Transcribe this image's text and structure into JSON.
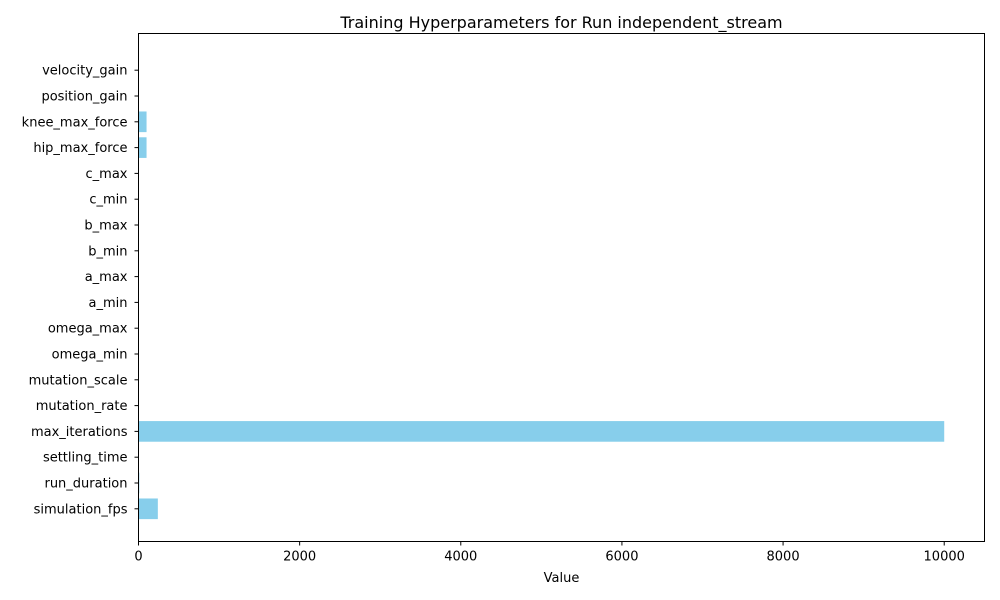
{
  "chart_data": {
    "type": "bar",
    "orientation": "horizontal",
    "title": "Training Hyperparameters for Run independent_stream",
    "xlabel": "Value",
    "ylabel": "",
    "xlim": [
      0,
      10500
    ],
    "xticks": [
      0,
      2000,
      4000,
      6000,
      8000,
      10000
    ],
    "grid": false,
    "legend": "none",
    "bar_color": "#87ceeb",
    "categories": [
      "simulation_fps",
      "run_duration",
      "settling_time",
      "max_iterations",
      "mutation_rate",
      "mutation_scale",
      "omega_min",
      "omega_max",
      "a_min",
      "a_max",
      "b_min",
      "b_max",
      "c_min",
      "c_max",
      "hip_max_force",
      "knee_max_force",
      "position_gain",
      "velocity_gain"
    ],
    "values": [
      240,
      10,
      3,
      10000,
      0.1,
      0.1,
      0.1,
      2,
      0.1,
      1,
      0.1,
      1,
      0.1,
      1,
      100,
      100,
      1,
      1
    ]
  }
}
